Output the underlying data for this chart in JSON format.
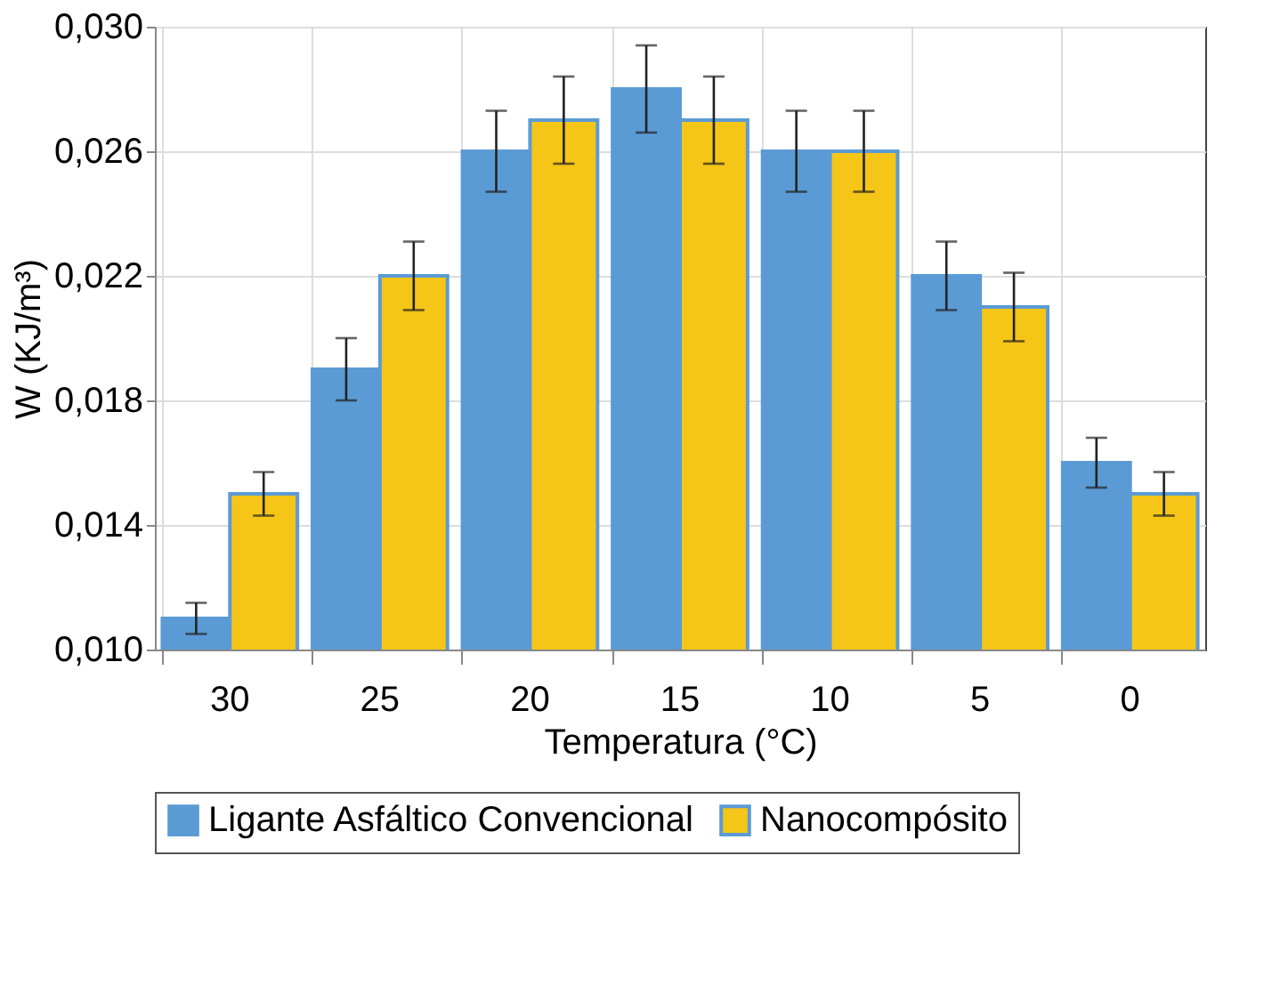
{
  "chart_data": {
    "type": "bar",
    "xlabel": "Temperatura (°C)",
    "ylabel": "W (KJ/m³)",
    "categories": [
      "30",
      "25",
      "20",
      "15",
      "10",
      "5",
      "0"
    ],
    "series": [
      {
        "name": "Ligante Asfáltico Convencional",
        "color": "#5b9bd5",
        "values": [
          0.011,
          0.019,
          0.026,
          0.028,
          0.026,
          0.022,
          0.016
        ],
        "errors": [
          0.0005,
          0.001,
          0.0013,
          0.0014,
          0.0013,
          0.0011,
          0.0008
        ]
      },
      {
        "name": "Nanocompósito",
        "color": "#f5c518",
        "values": [
          0.015,
          0.022,
          0.027,
          0.027,
          0.026,
          0.021,
          0.015
        ],
        "errors": [
          0.0007,
          0.0011,
          0.0014,
          0.0014,
          0.0013,
          0.0011,
          0.0007
        ]
      }
    ],
    "ylim": [
      0.01,
      0.03
    ],
    "yticks": [
      {
        "value": 0.01,
        "label": "0,010"
      },
      {
        "value": 0.014,
        "label": "0,014"
      },
      {
        "value": 0.018,
        "label": "0,018"
      },
      {
        "value": 0.022,
        "label": "0,022"
      },
      {
        "value": 0.026,
        "label": "0,026"
      },
      {
        "value": 0.03,
        "label": "0,030"
      }
    ],
    "grid": true,
    "legend": "bottom"
  }
}
